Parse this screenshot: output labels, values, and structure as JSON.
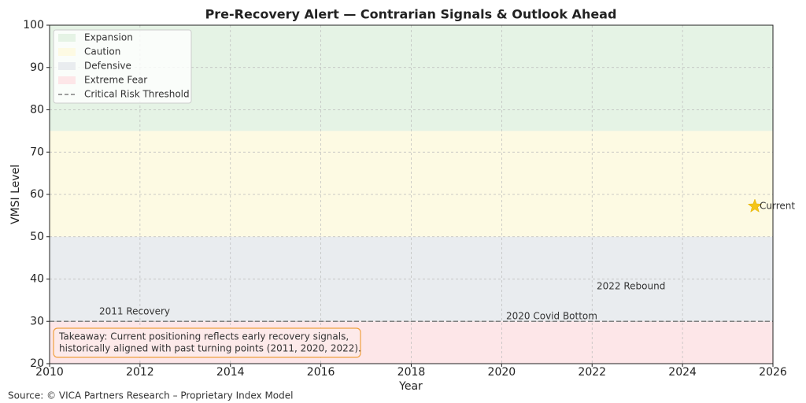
{
  "chart_data": {
    "type": "scatter",
    "title": "Pre-Recovery Alert — Contrarian Signals & Outlook Ahead",
    "x_label": "Year",
    "y_label": "VMSI Level",
    "xlim": [
      2010,
      2026
    ],
    "xticks": [
      2010,
      2012,
      2014,
      2016,
      2018,
      2020,
      2022,
      2024,
      2026
    ],
    "ylim": [
      20,
      100
    ],
    "yticks": [
      20,
      30,
      40,
      50,
      60,
      70,
      80,
      90,
      100
    ],
    "grid": true,
    "legend": "upper left",
    "bands": [
      {
        "name": "Expansion",
        "range": [
          75,
          100
        ],
        "color": "#e5f3e5"
      },
      {
        "name": "Caution",
        "range": [
          50,
          75
        ],
        "color": "#fdfae3"
      },
      {
        "name": "Defensive",
        "range": [
          30,
          50
        ],
        "color": "#e9ecef"
      },
      {
        "name": "Extreme Fear",
        "range": [
          20,
          30
        ],
        "color": "#fde6e8"
      }
    ],
    "threshold": {
      "name": "Critical Risk Threshold",
      "value": 30,
      "color": "#808080"
    },
    "series": [
      {
        "name": "Current",
        "color": "#f5c518",
        "x": [
          2025.6
        ],
        "values": [
          57.2
        ]
      }
    ],
    "annotations": [
      "2011 Recovery",
      "2020 Covid Bottom",
      "2022 Rebound"
    ],
    "takeaway": [
      "Takeaway: Current positioning reflects early recovery signals,",
      "historically aligned with past turning points (2011, 2020, 2022)."
    ],
    "source": "Source: © VICA Partners Research – Proprietary Index Model"
  }
}
